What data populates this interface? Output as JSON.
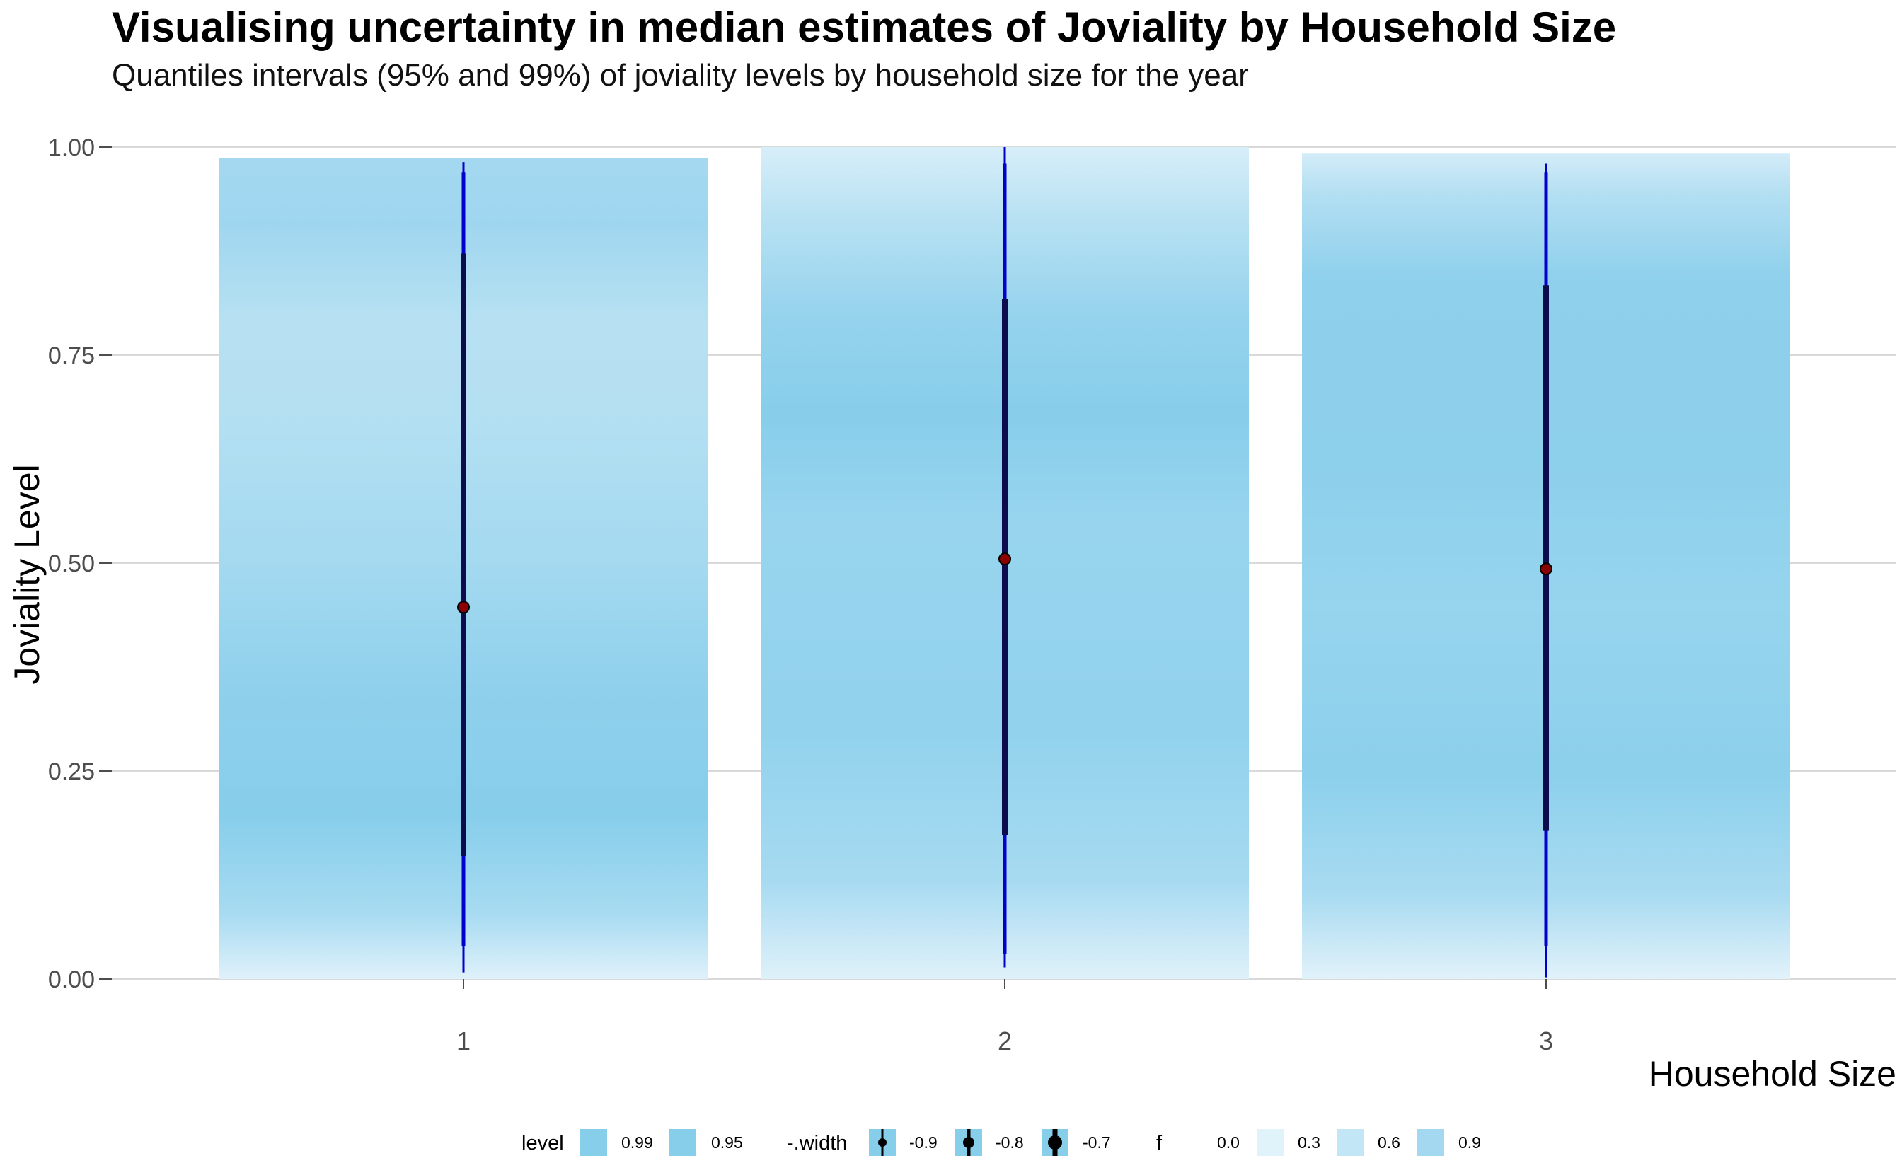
{
  "title": "Visualising uncertainty in median estimates of Joviality by Household Size",
  "subtitle": "Quantiles intervals (95% and 99%) of joviality levels by household size for the year",
  "colors": {
    "band": "#87CEEB",
    "interval_line": "#0000CD",
    "point_fill": "#8B0000",
    "grid": "#d9d9d9"
  },
  "chart_data": {
    "type": "interval",
    "xlabel": "Household Size",
    "ylabel": "Joviality Level",
    "ylim": [
      0,
      1
    ],
    "yticks": [
      "0.00",
      "0.25",
      "0.50",
      "0.75",
      "1.00"
    ],
    "grid": true,
    "legend_position": "bottom",
    "categories": [
      "1",
      "2",
      "3"
    ],
    "groups": [
      {
        "category": "1",
        "median": 0.447,
        "interval_95": [
          0.04,
          0.97
        ],
        "interval_99": [
          0.008,
          0.982
        ],
        "interval_thick": [
          0.148,
          0.872
        ],
        "density_range": [
          0,
          0.987
        ]
      },
      {
        "category": "2",
        "median": 0.505,
        "interval_95": [
          0.03,
          0.98
        ],
        "interval_99": [
          0.014,
          1.0
        ],
        "interval_thick": [
          0.173,
          0.818
        ],
        "density_range": [
          0,
          1.0
        ]
      },
      {
        "category": "3",
        "median": 0.493,
        "interval_95": [
          0.04,
          0.97
        ],
        "interval_99": [
          0.002,
          0.98
        ],
        "interval_thick": [
          0.178,
          0.834
        ],
        "density_range": [
          0,
          0.993
        ]
      }
    ]
  },
  "legend": {
    "level": {
      "title": "level",
      "items": [
        "0.99",
        "0.95"
      ]
    },
    "width": {
      "title": "-.width",
      "items": [
        "-0.9",
        "-0.8",
        "-0.7"
      ]
    },
    "f": {
      "title": "f",
      "items": [
        "0.0",
        "0.3",
        "0.6",
        "0.9"
      ]
    }
  }
}
